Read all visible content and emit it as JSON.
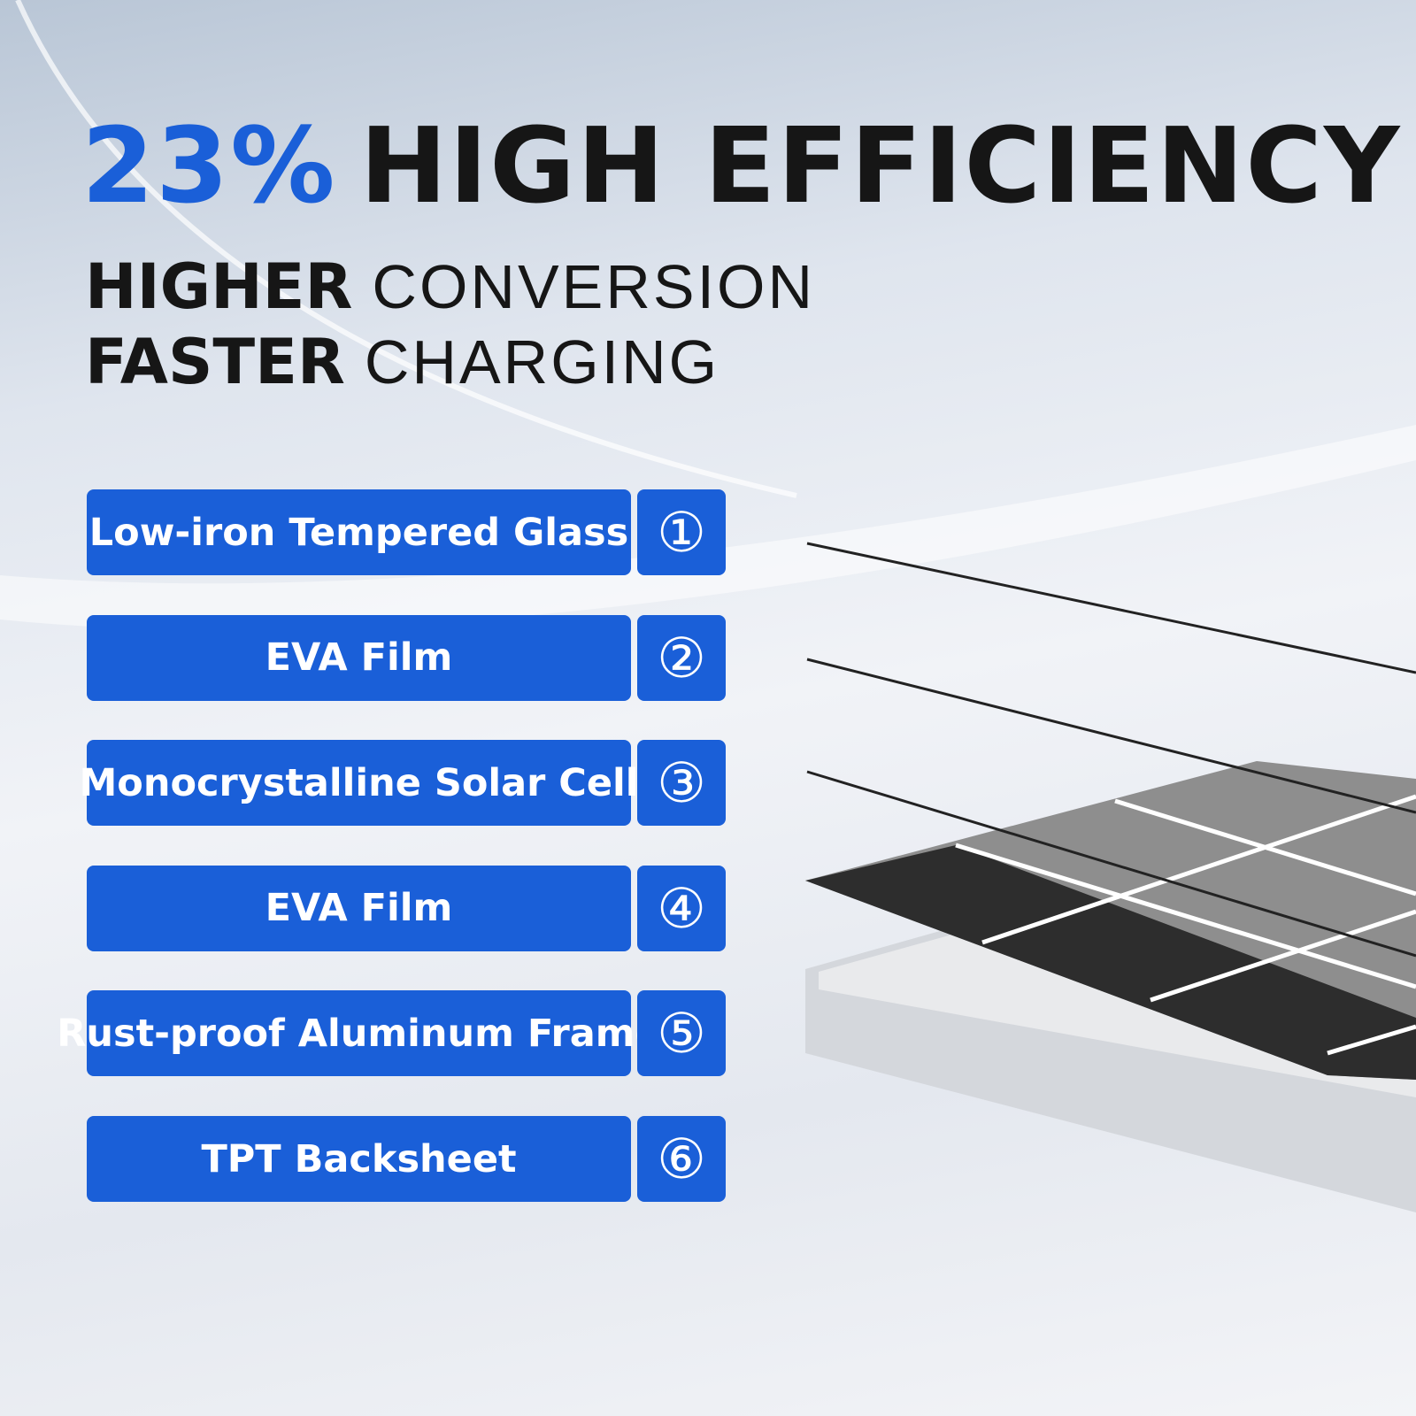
{
  "headline": {
    "highlight": "23%",
    "text": "HIGH EFFICIENCY"
  },
  "subheadings": [
    {
      "bold": "HIGHER",
      "light": "CONVERSION"
    },
    {
      "bold": "FASTER",
      "light": "CHARGING"
    }
  ],
  "layers": [
    {
      "label": "Low-iron Tempered Glass",
      "number": "①"
    },
    {
      "label": "EVA Film",
      "number": "②"
    },
    {
      "label": "Monocrystalline Solar Cell",
      "number": "③"
    },
    {
      "label": "EVA Film",
      "number": "④"
    },
    {
      "label": "Rust-proof Aluminum Frame",
      "number": "⑤"
    },
    {
      "label": "TPT Backsheet",
      "number": "⑥"
    }
  ]
}
